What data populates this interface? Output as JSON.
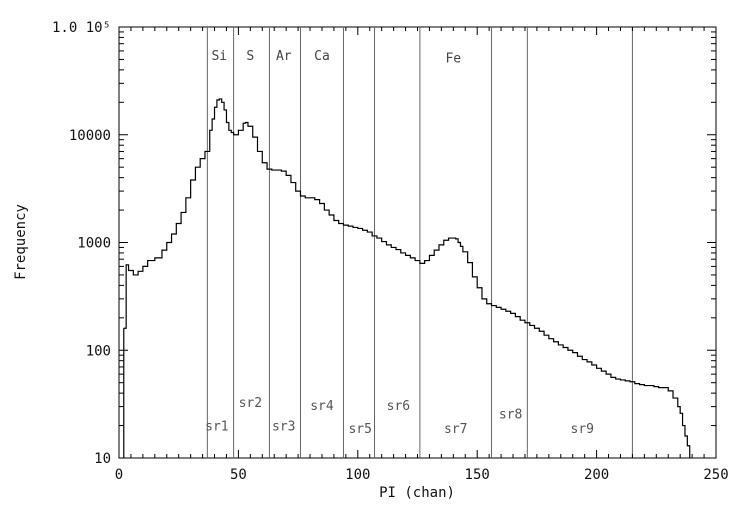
{
  "chart_data": {
    "type": "line",
    "title": "",
    "xlabel": "PI (chan)",
    "ylabel": "Frequency",
    "xlim": [
      0,
      250
    ],
    "ylim": [
      10,
      100000
    ],
    "yscale": "log",
    "grid": false,
    "x_ticks": [
      0,
      50,
      100,
      150,
      200,
      250
    ],
    "y_ticks": [
      {
        "value": 10,
        "label": "10"
      },
      {
        "value": 100,
        "label": "100"
      },
      {
        "value": 1000,
        "label": "1000"
      },
      {
        "value": 10000,
        "label": "10000"
      },
      {
        "value": 100000,
        "label": "1.0 10⁵"
      }
    ],
    "region_boundaries": [
      37,
      48,
      63,
      76,
      94,
      107,
      126,
      156,
      171,
      215
    ],
    "region_labels": [
      {
        "label": "sr1",
        "x": 41,
        "y": 20
      },
      {
        "label": "sr2",
        "x": 55,
        "y": 33
      },
      {
        "label": "sr3",
        "x": 69,
        "y": 20
      },
      {
        "label": "sr4",
        "x": 85,
        "y": 31
      },
      {
        "label": "sr5",
        "x": 101,
        "y": 19
      },
      {
        "label": "sr6",
        "x": 117,
        "y": 31
      },
      {
        "label": "sr7",
        "x": 141,
        "y": 19
      },
      {
        "label": "sr8",
        "x": 164,
        "y": 26
      },
      {
        "label": "sr9",
        "x": 194,
        "y": 19
      }
    ],
    "element_labels": [
      {
        "label": "Si",
        "x": 42,
        "y": 55000
      },
      {
        "label": "S",
        "x": 55,
        "y": 55000
      },
      {
        "label": "Ar",
        "x": 69,
        "y": 55000
      },
      {
        "label": "Ca",
        "x": 85,
        "y": 55000
      },
      {
        "label": "Fe",
        "x": 140,
        "y": 52000
      }
    ],
    "series": [
      {
        "x": [
          2,
          3,
          4,
          6,
          8,
          10,
          12,
          15,
          18,
          20,
          22,
          24,
          26,
          28,
          30,
          32,
          34,
          36,
          38,
          39,
          40,
          41,
          42,
          43,
          44,
          45,
          46,
          47,
          48,
          50,
          52,
          53,
          54,
          56,
          58,
          60,
          62,
          64,
          66,
          68,
          70,
          72,
          74,
          76,
          78,
          80,
          82,
          84,
          86,
          88,
          90,
          92,
          94,
          96,
          98,
          100,
          102,
          104,
          106,
          108,
          110,
          112,
          114,
          116,
          118,
          120,
          122,
          124,
          126,
          128,
          130,
          132,
          134,
          136,
          138,
          140,
          141,
          142,
          143,
          144,
          146,
          148,
          150,
          152,
          154,
          156,
          158,
          160,
          162,
          164,
          166,
          168,
          170,
          172,
          174,
          176,
          178,
          180,
          182,
          184,
          186,
          188,
          190,
          192,
          194,
          196,
          198,
          200,
          202,
          204,
          206,
          208,
          210,
          212,
          214,
          216,
          218,
          220,
          222,
          224,
          226,
          228,
          230,
          232,
          234,
          235,
          236,
          237,
          238,
          239
        ],
        "y": [
          160,
          620,
          550,
          500,
          540,
          600,
          680,
          720,
          850,
          1000,
          1200,
          1500,
          1900,
          2600,
          3800,
          5000,
          6000,
          7000,
          11000,
          14000,
          18000,
          21000,
          21500,
          20000,
          17000,
          13000,
          11000,
          10500,
          10000,
          11000,
          12800,
          13000,
          12000,
          9500,
          7000,
          5500,
          4800,
          4700,
          4700,
          4600,
          4200,
          3600,
          3000,
          2700,
          2600,
          2600,
          2500,
          2300,
          2000,
          1800,
          1600,
          1500,
          1450,
          1420,
          1380,
          1350,
          1300,
          1250,
          1150,
          1100,
          1020,
          950,
          900,
          860,
          800,
          760,
          720,
          680,
          640,
          680,
          760,
          850,
          950,
          1050,
          1100,
          1100,
          1080,
          1000,
          920,
          820,
          650,
          480,
          380,
          300,
          270,
          260,
          250,
          240,
          230,
          220,
          205,
          190,
          180,
          170,
          160,
          150,
          138,
          128,
          120,
          112,
          106,
          100,
          95,
          88,
          82,
          78,
          73,
          68,
          64,
          60,
          56,
          54,
          53,
          52,
          51,
          49,
          48,
          47,
          47,
          46,
          45,
          45,
          42,
          36,
          30,
          26,
          20,
          16,
          13,
          11
        ]
      }
    ]
  }
}
